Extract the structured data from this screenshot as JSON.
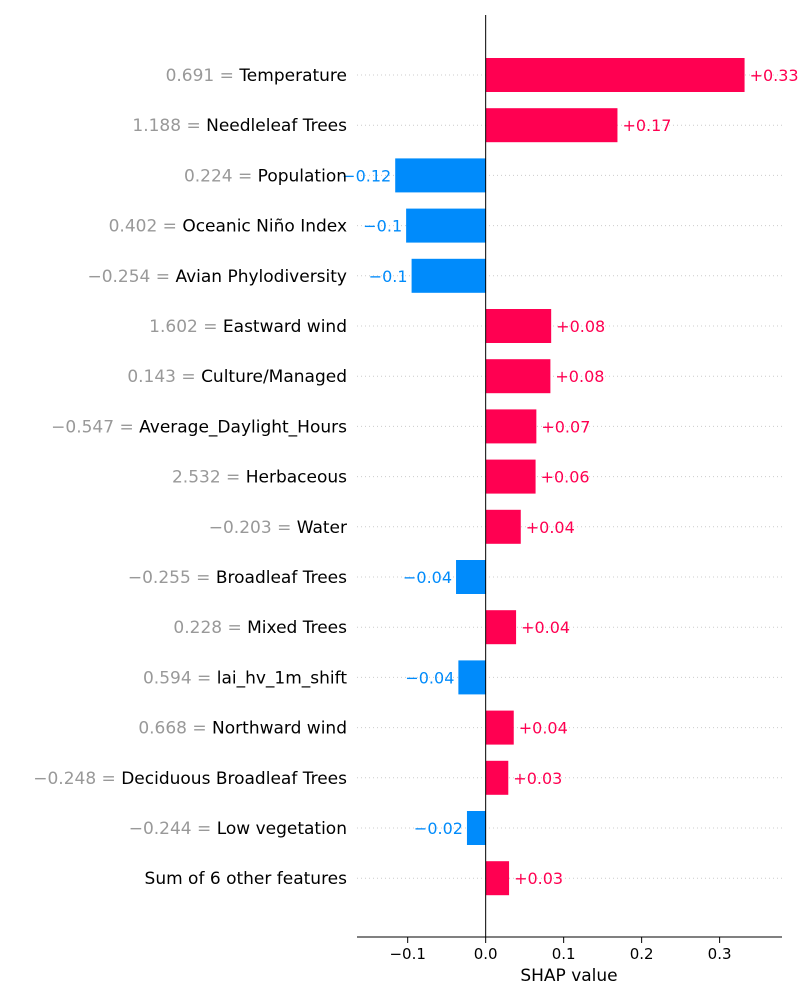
{
  "chart_data": {
    "type": "bar",
    "orientation": "horizontal",
    "xlabel": "SHAP value",
    "xlim": [
      -0.165,
      0.38
    ],
    "x_ticks": [
      -0.1,
      0.0,
      0.1,
      0.2,
      0.3
    ],
    "x_tick_labels": [
      "−0.1",
      "0.0",
      "0.1",
      "0.2",
      "0.3"
    ],
    "zero_line": true,
    "colors": {
      "positive": "#ff0051",
      "negative": "#008bfb",
      "feature_value": "#999999"
    },
    "rows": [
      {
        "value_text": "0.691",
        "feature": "Temperature",
        "shap": 0.332,
        "label": "+0.33"
      },
      {
        "value_text": "1.188",
        "feature": "Needleleaf Trees",
        "shap": 0.169,
        "label": "+0.17"
      },
      {
        "value_text": "0.224",
        "feature": "Population",
        "shap": -0.116,
        "label": "−0.12"
      },
      {
        "value_text": "0.402",
        "feature": "Oceanic Niño Index",
        "shap": -0.102,
        "label": "−0.1"
      },
      {
        "value_text": "−0.254",
        "feature": "Avian Phylodiversity",
        "shap": -0.095,
        "label": "−0.1"
      },
      {
        "value_text": "1.602",
        "feature": "Eastward wind",
        "shap": 0.084,
        "label": "+0.08"
      },
      {
        "value_text": "0.143",
        "feature": "Culture/Managed",
        "shap": 0.083,
        "label": "+0.08"
      },
      {
        "value_text": "−0.547",
        "feature": "Average_Daylight_Hours",
        "shap": 0.065,
        "label": "+0.07"
      },
      {
        "value_text": "2.532",
        "feature": "Herbaceous",
        "shap": 0.064,
        "label": "+0.06"
      },
      {
        "value_text": "−0.203",
        "feature": "Water",
        "shap": 0.045,
        "label": "+0.04"
      },
      {
        "value_text": "−0.255",
        "feature": "Broadleaf Trees",
        "shap": -0.038,
        "label": "−0.04"
      },
      {
        "value_text": "0.228",
        "feature": "Mixed Trees",
        "shap": 0.039,
        "label": "+0.04"
      },
      {
        "value_text": "0.594",
        "feature": "lai_hv_1m_shift",
        "shap": -0.035,
        "label": "−0.04"
      },
      {
        "value_text": "0.668",
        "feature": "Northward wind",
        "shap": 0.036,
        "label": "+0.04"
      },
      {
        "value_text": "−0.248",
        "feature": "Deciduous Broadleaf Trees",
        "shap": 0.029,
        "label": "+0.03"
      },
      {
        "value_text": "−0.244",
        "feature": "Low vegetation",
        "shap": -0.024,
        "label": "−0.02"
      },
      {
        "value_text": "",
        "feature": "Sum of 6 other features",
        "shap": 0.03,
        "label": "+0.03"
      }
    ]
  }
}
